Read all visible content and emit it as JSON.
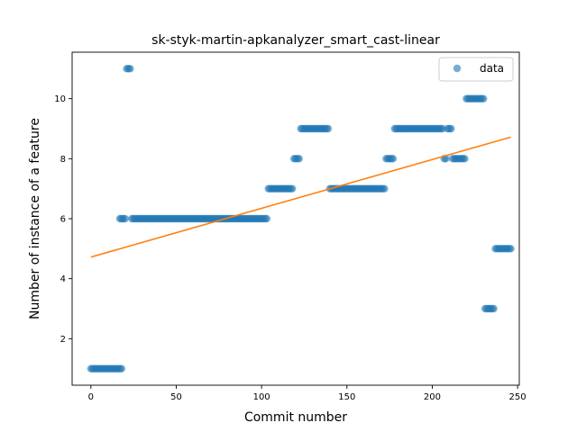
{
  "chart_data": {
    "type": "scatter",
    "title": "sk-styk-martin-apkanalyzer_smart_cast-linear",
    "xlabel": "Commit number",
    "ylabel": "Number of instance of a feature",
    "xlim": [
      -11,
      251
    ],
    "ylim": [
      0.45,
      11.55
    ],
    "xticks": [
      0,
      50,
      100,
      150,
      200,
      250
    ],
    "yticks": [
      2,
      4,
      6,
      8,
      10
    ],
    "grid": false,
    "legend_position": "top-right",
    "series": [
      {
        "name": "data",
        "kind": "points",
        "color": "#1f77b4",
        "runs": [
          {
            "x_start": 0,
            "x_end": 18,
            "y": 1
          },
          {
            "x_start": 17,
            "x_end": 20,
            "y": 6
          },
          {
            "x_start": 21,
            "x_end": 23,
            "y": 11
          },
          {
            "x_start": 24,
            "x_end": 103,
            "y": 6
          },
          {
            "x_start": 104,
            "x_end": 118,
            "y": 7
          },
          {
            "x_start": 119,
            "x_end": 122,
            "y": 8
          },
          {
            "x_start": 123,
            "x_end": 139,
            "y": 9
          },
          {
            "x_start": 140,
            "x_end": 172,
            "y": 7
          },
          {
            "x_start": 173,
            "x_end": 177,
            "y": 8
          },
          {
            "x_start": 178,
            "x_end": 206,
            "y": 9
          },
          {
            "x_start": 207,
            "x_end": 208,
            "y": 8
          },
          {
            "x_start": 209,
            "x_end": 211,
            "y": 9
          },
          {
            "x_start": 212,
            "x_end": 219,
            "y": 8
          },
          {
            "x_start": 220,
            "x_end": 230,
            "y": 10
          },
          {
            "x_start": 231,
            "x_end": 236,
            "y": 3
          },
          {
            "x_start": 237,
            "x_end": 246,
            "y": 5
          }
        ]
      },
      {
        "name": "",
        "kind": "line",
        "color": "#ff7f0e",
        "x": [
          0,
          246
        ],
        "y": [
          4.72,
          8.72
        ]
      }
    ]
  }
}
